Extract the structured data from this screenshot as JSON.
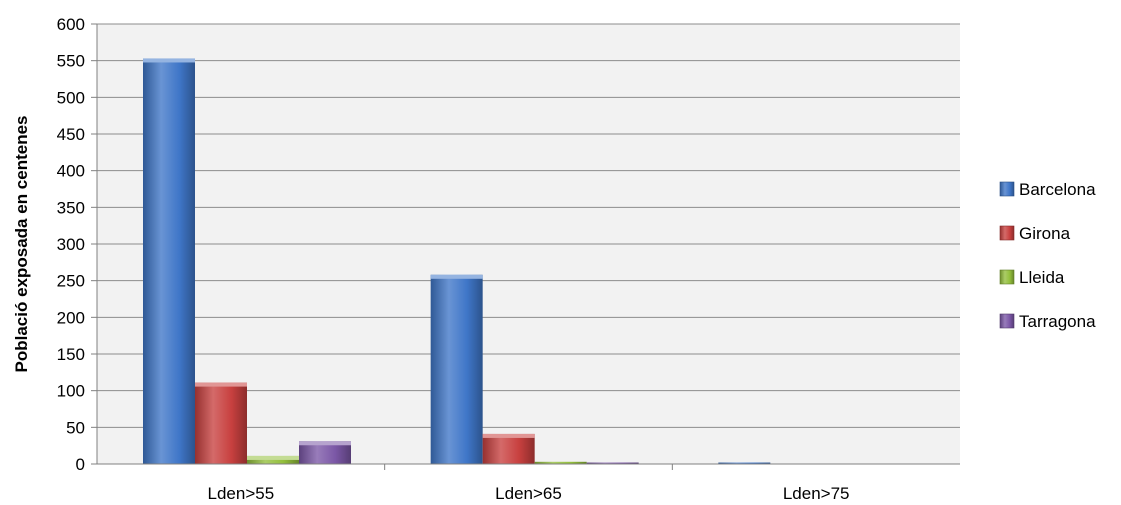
{
  "chart_data": {
    "type": "bar",
    "title": "",
    "xlabel": "",
    "ylabel": "Població exposada en centenes",
    "categories": [
      "Lden>55",
      "Lden>65",
      "Lden>75"
    ],
    "series": [
      {
        "name": "Barcelona",
        "values": [
          553,
          258,
          2
        ],
        "color": "#3f76c8"
      },
      {
        "name": "Girona",
        "values": [
          111,
          41,
          0
        ],
        "color": "#c8403f"
      },
      {
        "name": "Lleida",
        "values": [
          11,
          3,
          0
        ],
        "color": "#93bf3c"
      },
      {
        "name": "Tarragona",
        "values": [
          31,
          2,
          0
        ],
        "color": "#7b57a6"
      }
    ],
    "ylim": [
      0,
      600
    ],
    "yticks": [
      0,
      50,
      100,
      150,
      200,
      250,
      300,
      350,
      400,
      450,
      500,
      550,
      600
    ],
    "grid": true,
    "legend_position": "right"
  }
}
